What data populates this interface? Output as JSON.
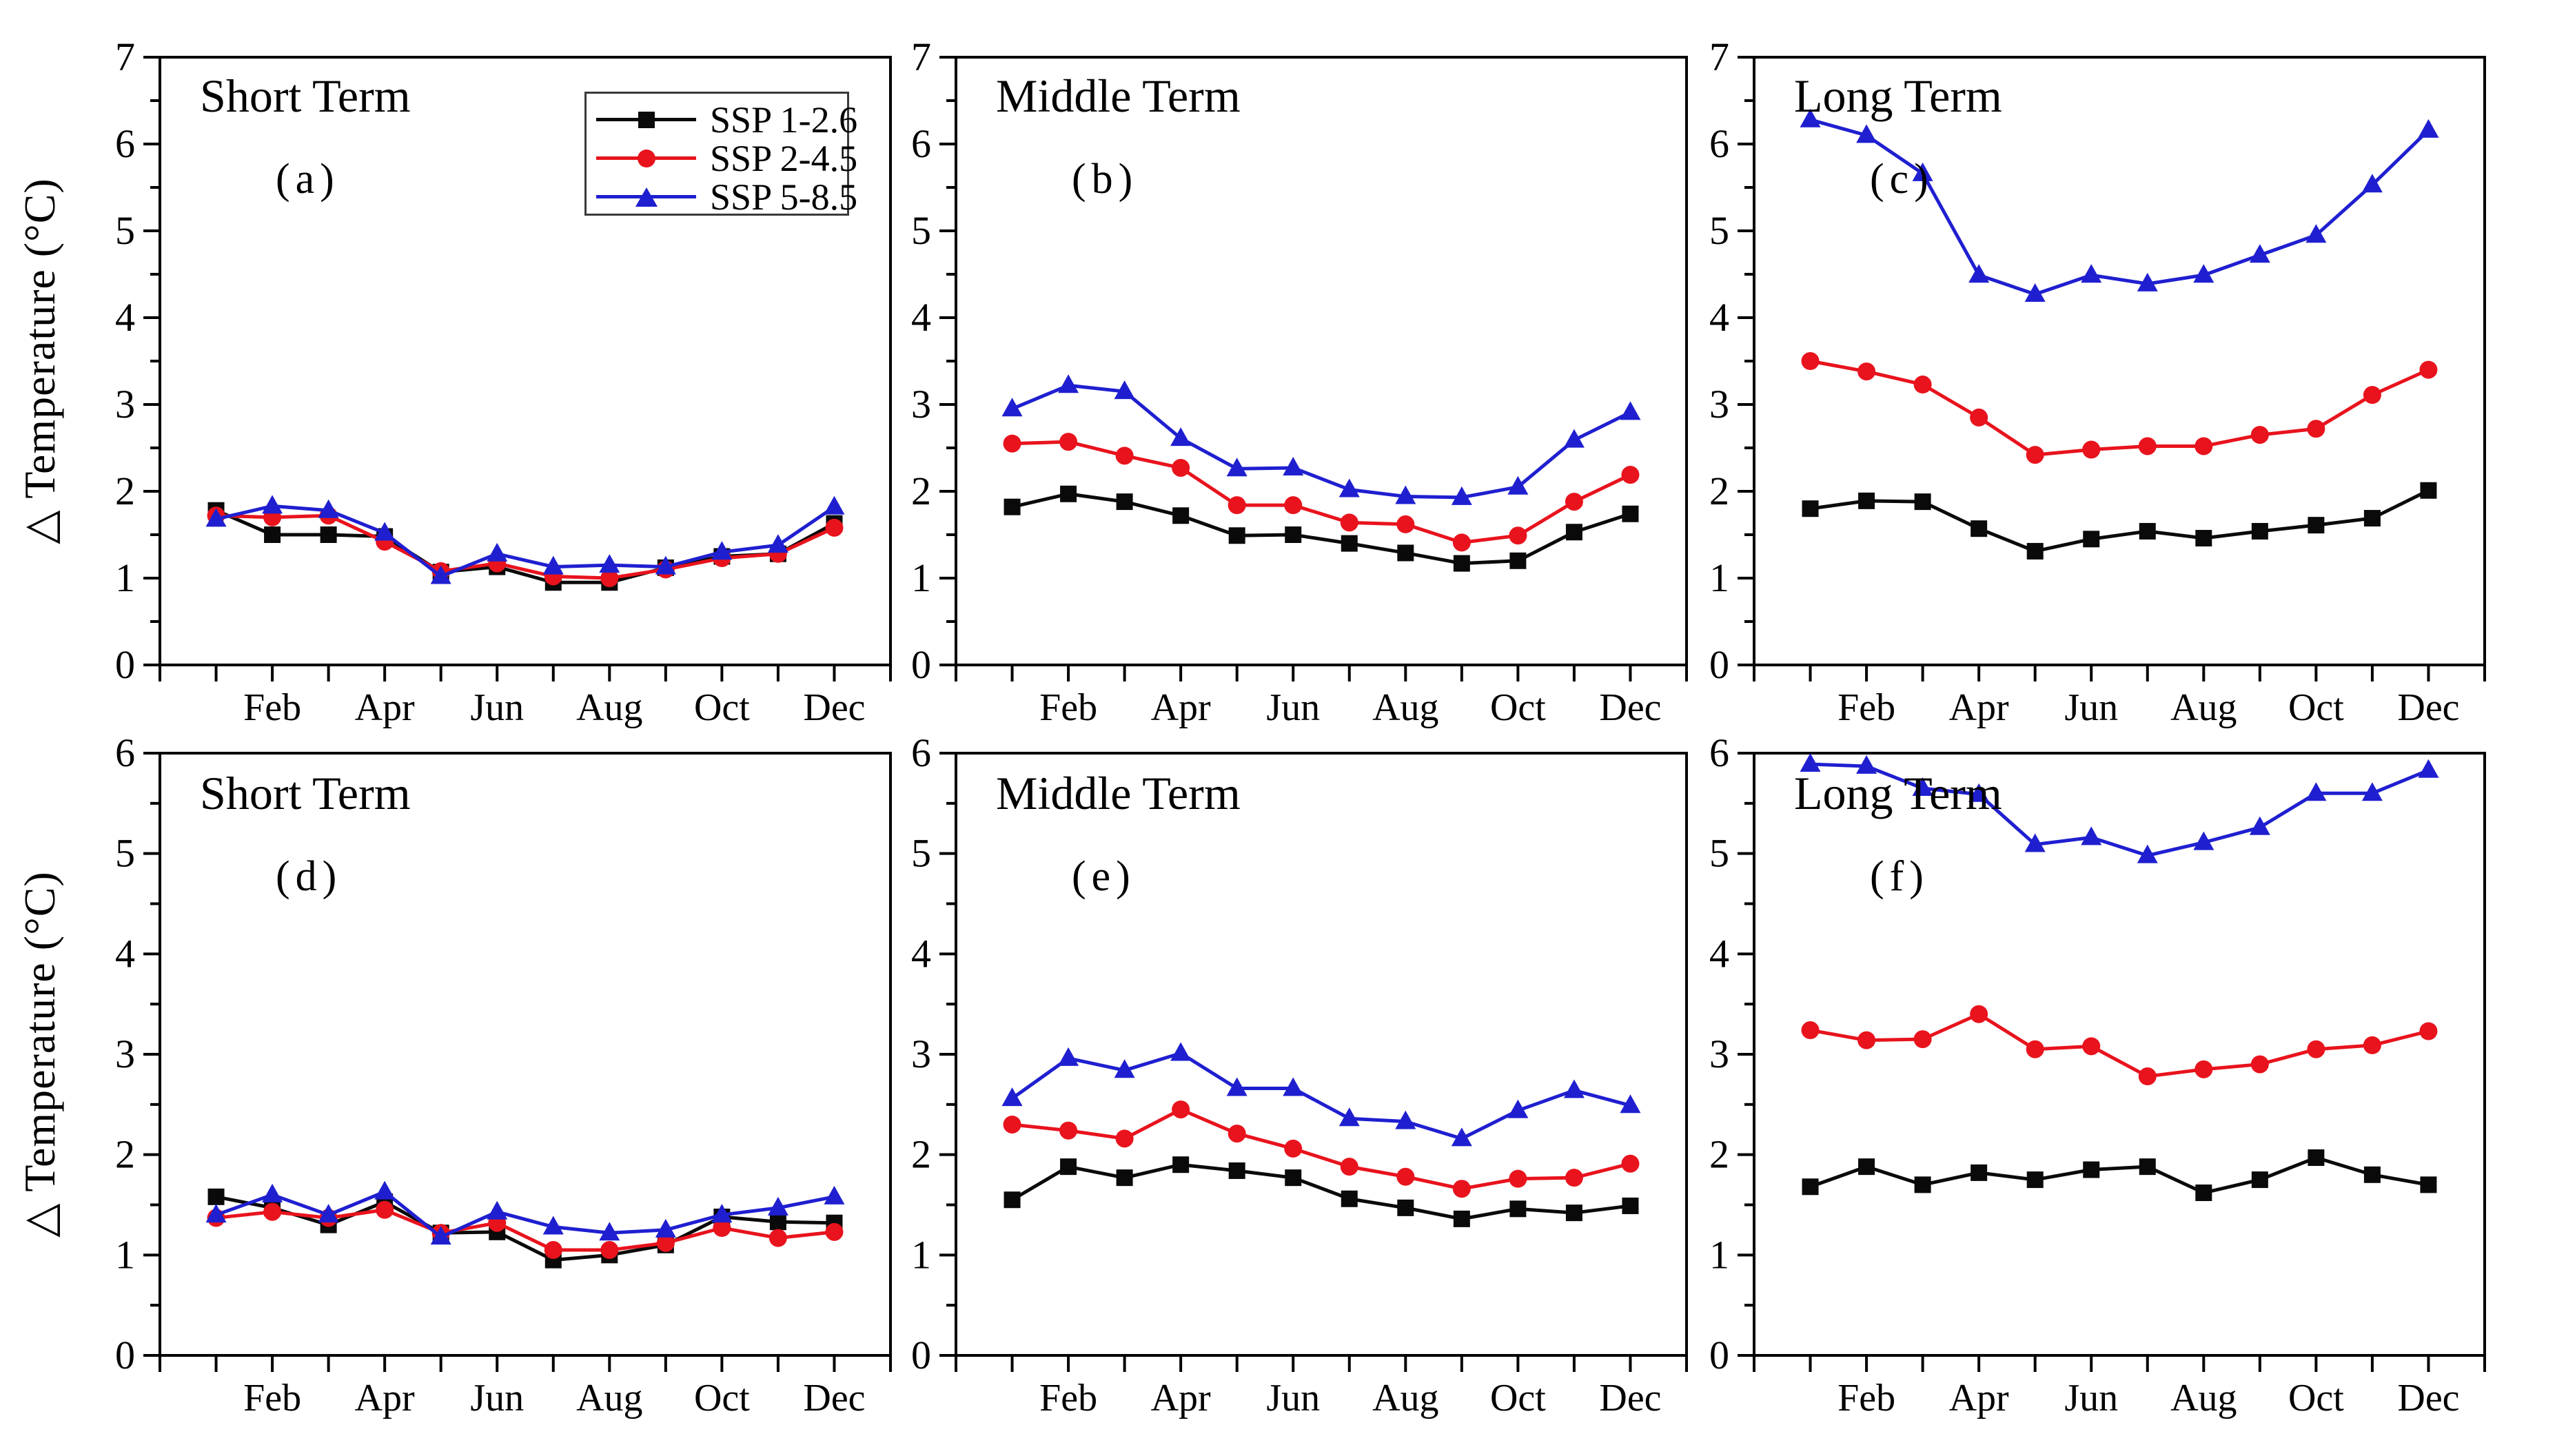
{
  "figure": {
    "ylabel": "△ Temperature (°C)",
    "background": "#ffffff",
    "axis_color": "#000000"
  },
  "legend": {
    "position": "top-right-inside-panel-a",
    "entries": [
      {
        "label": "SSP 1-2.6",
        "color": "#0a0a0a",
        "marker": "square"
      },
      {
        "label": "SSP 2-4.5",
        "color": "#e8131d",
        "marker": "circle"
      },
      {
        "label": "SSP 5-8.5",
        "color": "#1f1fd0",
        "marker": "triangle"
      }
    ]
  },
  "chart_data": [
    {
      "id": "a",
      "type": "line",
      "title": "Short Term",
      "panel_label": "(a)",
      "xlabel": "",
      "ylabel": "△ Temperature (°C)",
      "x": [
        "Jan",
        "Feb",
        "Mar",
        "Apr",
        "May",
        "Jun",
        "Jul",
        "Aug",
        "Sep",
        "Oct",
        "Nov",
        "Dec"
      ],
      "x_tick_labels": [
        "Feb",
        "Apr",
        "Jun",
        "Aug",
        "Oct",
        "Dec"
      ],
      "ylim": [
        0,
        7
      ],
      "yticks": [
        0,
        1,
        2,
        3,
        4,
        5,
        6,
        7
      ],
      "grid": false,
      "series": [
        {
          "name": "SSP 1-2.6",
          "values": [
            1.78,
            1.5,
            1.5,
            1.48,
            1.07,
            1.13,
            0.95,
            0.95,
            1.12,
            1.25,
            1.28,
            1.63
          ]
        },
        {
          "name": "SSP 2-4.5",
          "values": [
            1.72,
            1.7,
            1.72,
            1.42,
            1.08,
            1.17,
            1.02,
            1.0,
            1.1,
            1.23,
            1.28,
            1.58
          ]
        },
        {
          "name": "SSP 5-8.5",
          "values": [
            1.68,
            1.83,
            1.78,
            1.52,
            1.02,
            1.28,
            1.13,
            1.15,
            1.13,
            1.3,
            1.38,
            1.82
          ]
        }
      ]
    },
    {
      "id": "b",
      "type": "line",
      "title": "Middle Term",
      "panel_label": "(b)",
      "xlabel": "",
      "ylabel": "△ Temperature (°C)",
      "x": [
        "Jan",
        "Feb",
        "Mar",
        "Apr",
        "May",
        "Jun",
        "Jul",
        "Aug",
        "Sep",
        "Oct",
        "Nov",
        "Dec"
      ],
      "x_tick_labels": [
        "Feb",
        "Apr",
        "Jun",
        "Aug",
        "Oct",
        "Dec"
      ],
      "ylim": [
        0,
        7
      ],
      "yticks": [
        0,
        1,
        2,
        3,
        4,
        5,
        6,
        7
      ],
      "grid": false,
      "series": [
        {
          "name": "SSP 1-2.6",
          "values": [
            1.82,
            1.97,
            1.88,
            1.72,
            1.49,
            1.5,
            1.4,
            1.29,
            1.17,
            1.2,
            1.53,
            1.74
          ]
        },
        {
          "name": "SSP 2-4.5",
          "values": [
            2.55,
            2.57,
            2.41,
            2.27,
            1.84,
            1.84,
            1.64,
            1.62,
            1.41,
            1.49,
            1.88,
            2.19
          ]
        },
        {
          "name": "SSP 5-8.5",
          "values": [
            2.95,
            3.22,
            3.15,
            2.61,
            2.26,
            2.27,
            2.02,
            1.94,
            1.93,
            2.05,
            2.59,
            2.91
          ]
        }
      ]
    },
    {
      "id": "c",
      "type": "line",
      "title": "Long Term",
      "panel_label": "(c)",
      "xlabel": "",
      "ylabel": "△ Temperature (°C)",
      "x": [
        "Jan",
        "Feb",
        "Mar",
        "Apr",
        "May",
        "Jun",
        "Jul",
        "Aug",
        "Sep",
        "Oct",
        "Nov",
        "Dec"
      ],
      "x_tick_labels": [
        "Feb",
        "Apr",
        "Jun",
        "Aug",
        "Oct",
        "Dec"
      ],
      "ylim": [
        0,
        7
      ],
      "yticks": [
        0,
        1,
        2,
        3,
        4,
        5,
        6,
        7
      ],
      "grid": false,
      "series": [
        {
          "name": "SSP 1-2.6",
          "values": [
            1.8,
            1.89,
            1.88,
            1.57,
            1.31,
            1.45,
            1.54,
            1.46,
            1.54,
            1.61,
            1.69,
            2.01
          ]
        },
        {
          "name": "SSP 2-4.5",
          "values": [
            3.5,
            3.38,
            3.23,
            2.85,
            2.42,
            2.48,
            2.52,
            2.52,
            2.65,
            2.72,
            3.11,
            3.4
          ]
        },
        {
          "name": "SSP 5-8.5",
          "values": [
            6.28,
            6.1,
            5.66,
            4.49,
            4.27,
            4.49,
            4.39,
            4.49,
            4.72,
            4.95,
            5.53,
            6.16
          ]
        }
      ]
    },
    {
      "id": "d",
      "type": "line",
      "title": "Short Term",
      "panel_label": "(d)",
      "xlabel": "",
      "ylabel": "△ Temperature (°C)",
      "x": [
        "Jan",
        "Feb",
        "Mar",
        "Apr",
        "May",
        "Jun",
        "Jul",
        "Aug",
        "Sep",
        "Oct",
        "Nov",
        "Dec"
      ],
      "x_tick_labels": [
        "Feb",
        "Apr",
        "Jun",
        "Aug",
        "Oct",
        "Dec"
      ],
      "ylim": [
        0,
        6
      ],
      "yticks": [
        0,
        1,
        2,
        3,
        4,
        5,
        6
      ],
      "grid": false,
      "series": [
        {
          "name": "SSP 1-2.6",
          "values": [
            1.58,
            1.47,
            1.3,
            1.53,
            1.22,
            1.23,
            0.95,
            1.0,
            1.1,
            1.38,
            1.33,
            1.32
          ]
        },
        {
          "name": "SSP 2-4.5",
          "values": [
            1.37,
            1.43,
            1.37,
            1.45,
            1.22,
            1.32,
            1.05,
            1.05,
            1.12,
            1.27,
            1.17,
            1.23
          ]
        },
        {
          "name": "SSP 5-8.5",
          "values": [
            1.4,
            1.6,
            1.4,
            1.63,
            1.18,
            1.43,
            1.28,
            1.22,
            1.25,
            1.4,
            1.47,
            1.58
          ]
        }
      ]
    },
    {
      "id": "e",
      "type": "line",
      "title": "Middle Term",
      "panel_label": "(e)",
      "xlabel": "",
      "ylabel": "△ Temperature (°C)",
      "x": [
        "Jan",
        "Feb",
        "Mar",
        "Apr",
        "May",
        "Jun",
        "Jul",
        "Aug",
        "Sep",
        "Oct",
        "Nov",
        "Dec"
      ],
      "x_tick_labels": [
        "Feb",
        "Apr",
        "Jun",
        "Aug",
        "Oct",
        "Dec"
      ],
      "ylim": [
        0,
        6
      ],
      "yticks": [
        0,
        1,
        2,
        3,
        4,
        5,
        6
      ],
      "grid": false,
      "series": [
        {
          "name": "SSP 1-2.6",
          "values": [
            1.55,
            1.88,
            1.77,
            1.9,
            1.84,
            1.77,
            1.56,
            1.47,
            1.36,
            1.46,
            1.42,
            1.49
          ]
        },
        {
          "name": "SSP 2-4.5",
          "values": [
            2.3,
            2.24,
            2.16,
            2.45,
            2.21,
            2.06,
            1.88,
            1.78,
            1.66,
            1.76,
            1.77,
            1.91
          ]
        },
        {
          "name": "SSP 5-8.5",
          "values": [
            2.56,
            2.96,
            2.84,
            3.01,
            2.66,
            2.66,
            2.36,
            2.33,
            2.16,
            2.44,
            2.64,
            2.49
          ]
        }
      ]
    },
    {
      "id": "f",
      "type": "line",
      "title": "Long Term",
      "panel_label": "(f)",
      "xlabel": "",
      "ylabel": "△ Temperature (°C)",
      "x": [
        "Jan",
        "Feb",
        "Mar",
        "Apr",
        "May",
        "Jun",
        "Jul",
        "Aug",
        "Sep",
        "Oct",
        "Nov",
        "Dec"
      ],
      "x_tick_labels": [
        "Feb",
        "Apr",
        "Jun",
        "Aug",
        "Oct",
        "Dec"
      ],
      "ylim": [
        0,
        6
      ],
      "yticks": [
        0,
        1,
        2,
        3,
        4,
        5,
        6
      ],
      "grid": false,
      "series": [
        {
          "name": "SSP 1-2.6",
          "values": [
            1.68,
            1.88,
            1.7,
            1.82,
            1.75,
            1.85,
            1.88,
            1.62,
            1.75,
            1.97,
            1.8,
            1.7
          ]
        },
        {
          "name": "SSP 2-4.5",
          "values": [
            3.24,
            3.14,
            3.15,
            3.4,
            3.05,
            3.08,
            2.78,
            2.85,
            2.9,
            3.05,
            3.09,
            3.23
          ]
        },
        {
          "name": "SSP 5-8.5",
          "values": [
            5.89,
            5.87,
            5.65,
            5.59,
            5.09,
            5.16,
            4.98,
            5.11,
            5.26,
            5.6,
            5.6,
            5.83
          ]
        }
      ]
    }
  ]
}
